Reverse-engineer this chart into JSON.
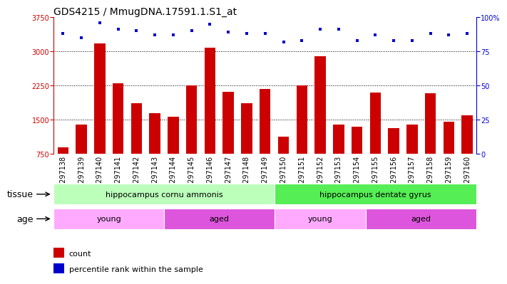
{
  "title": "GDS4215 / MmugDNA.17591.1.S1_at",
  "samples": [
    "GSM297138",
    "GSM297139",
    "GSM297140",
    "GSM297141",
    "GSM297142",
    "GSM297143",
    "GSM297144",
    "GSM297145",
    "GSM297146",
    "GSM297147",
    "GSM297148",
    "GSM297149",
    "GSM297150",
    "GSM297151",
    "GSM297152",
    "GSM297153",
    "GSM297154",
    "GSM297155",
    "GSM297156",
    "GSM297157",
    "GSM297158",
    "GSM297159",
    "GSM297160"
  ],
  "bar_values": [
    900,
    1390,
    3170,
    2300,
    1870,
    1640,
    1560,
    2260,
    3080,
    2120,
    1870,
    2180,
    1130,
    2260,
    2890,
    1390,
    1340,
    2100,
    1310,
    1400,
    2080,
    1460,
    1590
  ],
  "percentile_values": [
    88,
    85,
    96,
    91,
    90,
    87,
    87,
    90,
    95,
    89,
    88,
    88,
    82,
    83,
    91,
    91,
    83,
    87,
    83,
    83,
    88,
    87,
    88
  ],
  "bar_color": "#cc0000",
  "dot_color": "#0000cc",
  "ylim_left": [
    750,
    3750
  ],
  "ylim_right": [
    0,
    100
  ],
  "yticks_left": [
    750,
    1500,
    2250,
    3000,
    3750
  ],
  "yticks_right": [
    0,
    25,
    50,
    75,
    100
  ],
  "grid_lines": [
    1500,
    2250,
    3000
  ],
  "tissue_groups": [
    {
      "label": "hippocampus cornu ammonis",
      "start": 0,
      "end": 12,
      "color": "#bbffbb"
    },
    {
      "label": "hippocampus dentate gyrus",
      "start": 12,
      "end": 23,
      "color": "#55ee55"
    }
  ],
  "age_groups": [
    {
      "label": "young",
      "start": 0,
      "end": 6,
      "color": "#ffaaff"
    },
    {
      "label": "aged",
      "start": 6,
      "end": 12,
      "color": "#dd55dd"
    },
    {
      "label": "young",
      "start": 12,
      "end": 17,
      "color": "#ffaaff"
    },
    {
      "label": "aged",
      "start": 17,
      "end": 23,
      "color": "#dd55dd"
    }
  ],
  "tissue_label": "tissue",
  "age_label": "age",
  "background_color": "#ffffff",
  "title_fontsize": 10,
  "tick_fontsize": 7,
  "label_fontsize": 9,
  "row_fontsize": 8
}
